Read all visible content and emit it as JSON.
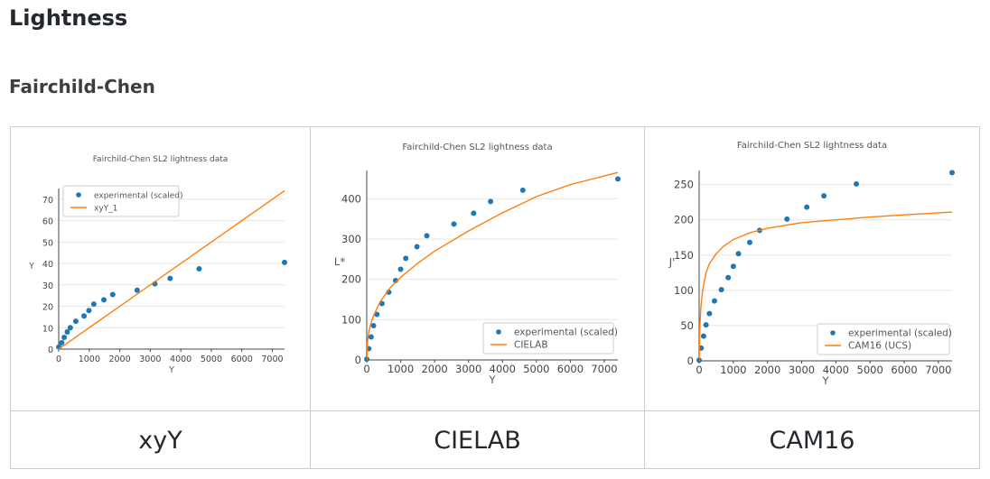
{
  "page": {
    "title": "Lightness",
    "subtitle": "Fairchild-Chen"
  },
  "captions": [
    "xyY",
    "CIELAB",
    "CAM16"
  ],
  "colors": {
    "points": "#1f77b4",
    "line": "#ff7f0e"
  },
  "chart_data": [
    {
      "type": "scatter",
      "title": "Fairchild-Chen SL2 lightness data",
      "xlabel": "Y",
      "ylabel": "Y",
      "xlim": [
        0,
        7400
      ],
      "ylim": [
        0,
        75
      ],
      "xticks": [
        0,
        1000,
        2000,
        3000,
        4000,
        5000,
        6000,
        7000
      ],
      "yticks": [
        0,
        10,
        20,
        30,
        40,
        50,
        60,
        70
      ],
      "legend": "top-left",
      "series": [
        {
          "name": "experimental (scaled)",
          "kind": "points",
          "x": [
            5,
            100,
            180,
            280,
            380,
            560,
            830,
            990,
            1150,
            1480,
            1770,
            2570,
            3150,
            3650,
            4600,
            7400
          ],
          "y": [
            1,
            3,
            5.5,
            8,
            10,
            13,
            15.5,
            18,
            21,
            23,
            25.5,
            27.5,
            30.5,
            33,
            37.5,
            40.5
          ]
        },
        {
          "name": "xyY_1",
          "kind": "line",
          "x": [
            0,
            7400
          ],
          "y": [
            0,
            74
          ]
        }
      ]
    },
    {
      "type": "scatter",
      "title": "Fairchild-Chen SL2 lightness data",
      "xlabel": "Y",
      "ylabel": "L*",
      "xlim": [
        0,
        7400
      ],
      "ylim": [
        0,
        470
      ],
      "xticks": [
        0,
        1000,
        2000,
        3000,
        4000,
        5000,
        6000,
        7000
      ],
      "yticks": [
        0,
        100,
        200,
        300,
        400
      ],
      "legend": "bottom-right",
      "series": [
        {
          "name": "experimental (scaled)",
          "kind": "points",
          "x": [
            0,
            60,
            130,
            200,
            300,
            450,
            650,
            850,
            1000,
            1150,
            1480,
            1770,
            2570,
            3150,
            3650,
            4600,
            7400
          ],
          "y": [
            2,
            28,
            57,
            85,
            113,
            140,
            168,
            197,
            225,
            252,
            281,
            308,
            337,
            364,
            393,
            421,
            449
          ]
        },
        {
          "name": "CIELAB",
          "kind": "line",
          "x": [
            0,
            20,
            50,
            100,
            200,
            400,
            700,
            1000,
            1500,
            2000,
            3000,
            4000,
            5000,
            6000,
            7400
          ],
          "y": [
            0,
            45,
            65,
            85,
            110,
            145,
            180,
            205,
            240,
            270,
            320,
            365,
            405,
            435,
            465
          ]
        }
      ]
    },
    {
      "type": "scatter",
      "title": "Fairchild-Chen SL2 lightness data",
      "xlabel": "Y",
      "ylabel": "J'",
      "xlim": [
        0,
        7400
      ],
      "ylim": [
        0,
        270
      ],
      "xticks": [
        0,
        1000,
        2000,
        3000,
        4000,
        5000,
        6000,
        7000
      ],
      "yticks": [
        0,
        50,
        100,
        150,
        200,
        250
      ],
      "legend": "bottom-right",
      "series": [
        {
          "name": "experimental (scaled)",
          "kind": "points",
          "x": [
            0,
            60,
            130,
            200,
            300,
            450,
            650,
            850,
            1000,
            1150,
            1480,
            1770,
            2570,
            3150,
            3650,
            4600,
            7400
          ],
          "y": [
            1,
            18,
            35,
            51,
            67,
            85,
            101,
            118,
            134,
            152,
            168,
            185,
            201,
            218,
            234,
            251,
            267
          ]
        },
        {
          "name": "CAM16 (UCS)",
          "kind": "line",
          "x": [
            0,
            20,
            50,
            100,
            200,
            300,
            500,
            700,
            1000,
            1500,
            2000,
            3000,
            4000,
            5000,
            6000,
            7400
          ],
          "y": [
            0,
            50,
            75,
            100,
            125,
            138,
            152,
            162,
            172,
            182,
            188,
            196,
            200,
            204,
            207,
            211
          ]
        }
      ]
    }
  ]
}
